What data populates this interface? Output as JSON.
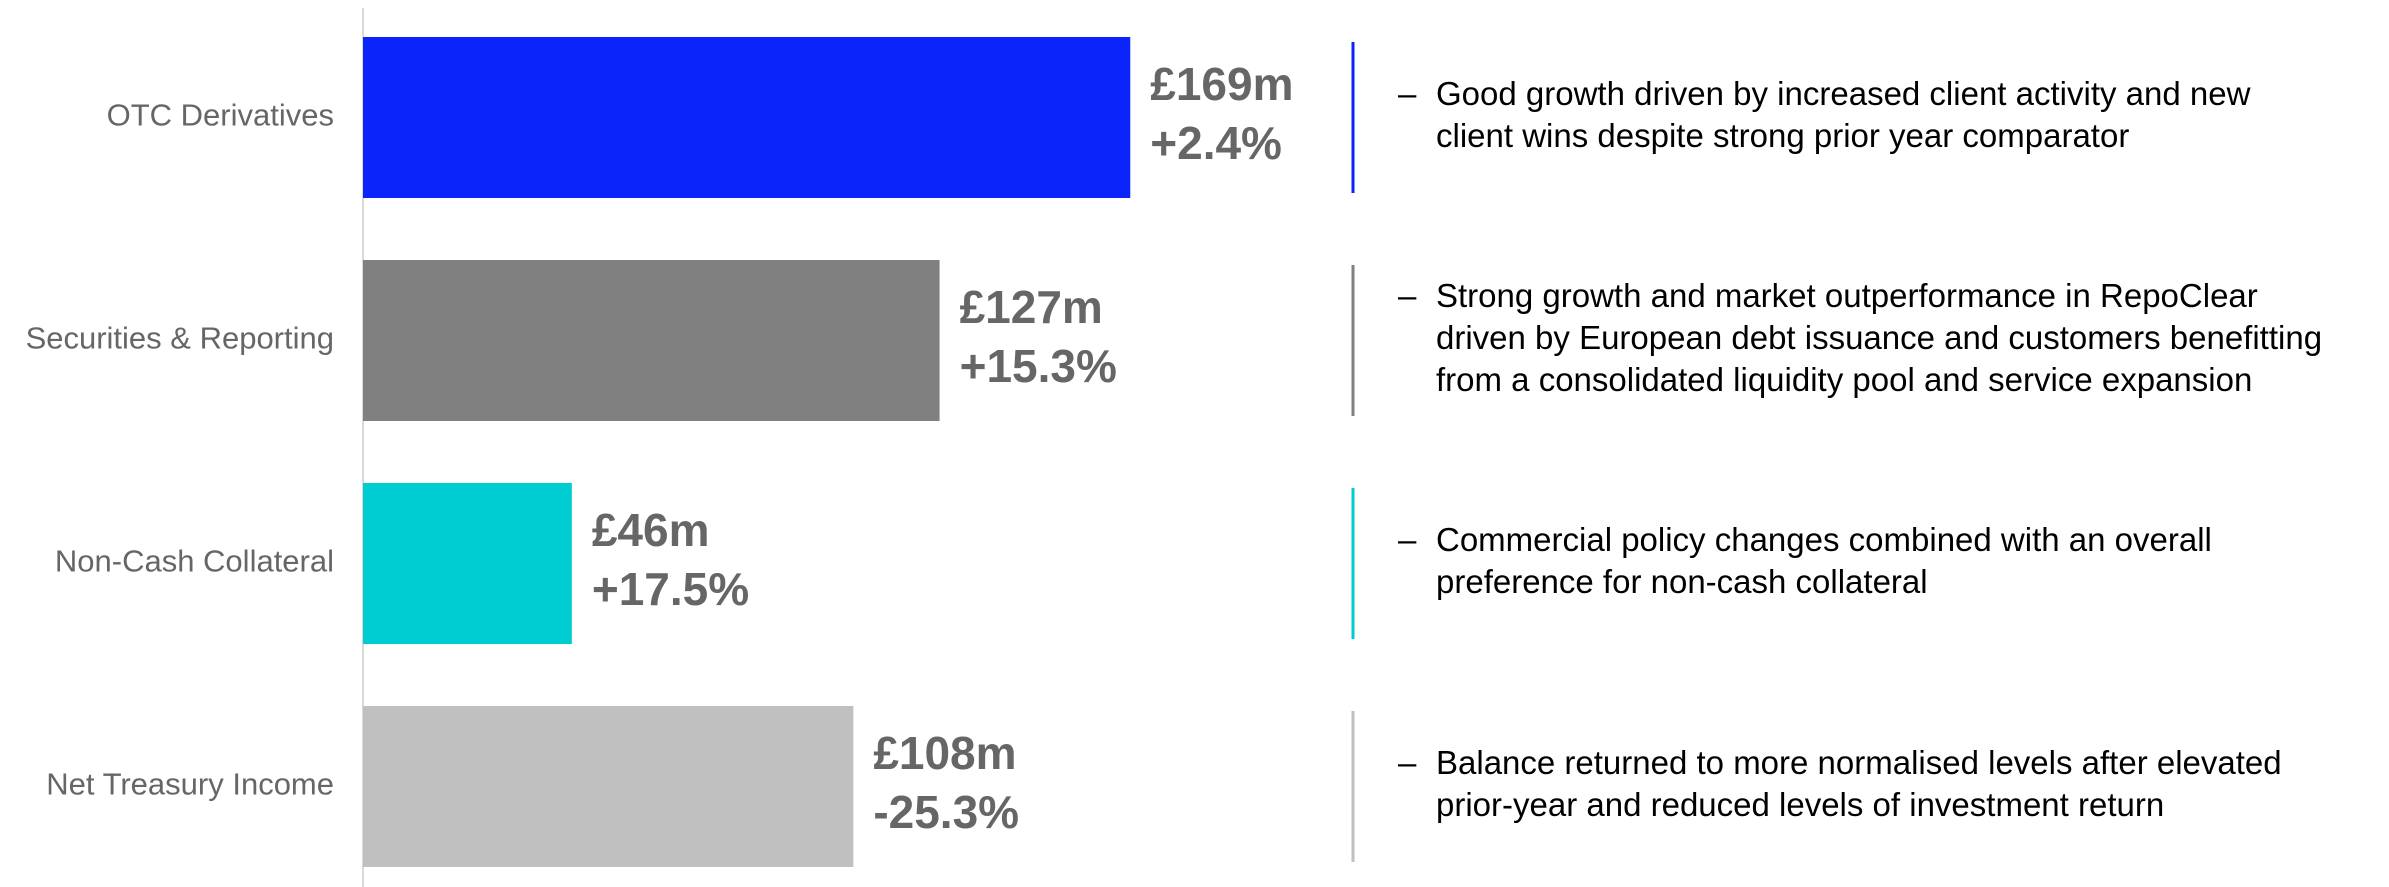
{
  "chart_data": {
    "type": "bar",
    "categories": [
      "OTC Derivatives",
      "Securities & Reporting",
      "Non-Cash Collateral",
      "Net Treasury Income"
    ],
    "values": [
      169,
      127,
      46,
      108
    ],
    "value_labels": [
      "£169m",
      "£127m",
      "£46m",
      "£108m"
    ],
    "changes": [
      2.4,
      15.3,
      17.5,
      -25.3
    ],
    "change_labels": [
      "+2.4%",
      "+15.3%",
      "+17.5%",
      "-25.3%"
    ],
    "colors": [
      "#0b24fb",
      "#808080",
      "#00cdd2",
      "#c0c0c0"
    ],
    "comments": [
      [
        "Good growth driven by increased client activity and new",
        "client wins despite strong prior year comparator"
      ],
      [
        "Strong growth and market outperformance in RepoClear",
        "driven by European debt issuance and customers benefitting",
        "from a consolidated liquidity pool and service expansion"
      ],
      [
        "Commercial policy changes combined with an overall",
        "preference for non-cash collateral"
      ],
      [
        "Balance returned to more normalised levels after elevated",
        "prior-year and reduced levels of investment return"
      ]
    ]
  }
}
